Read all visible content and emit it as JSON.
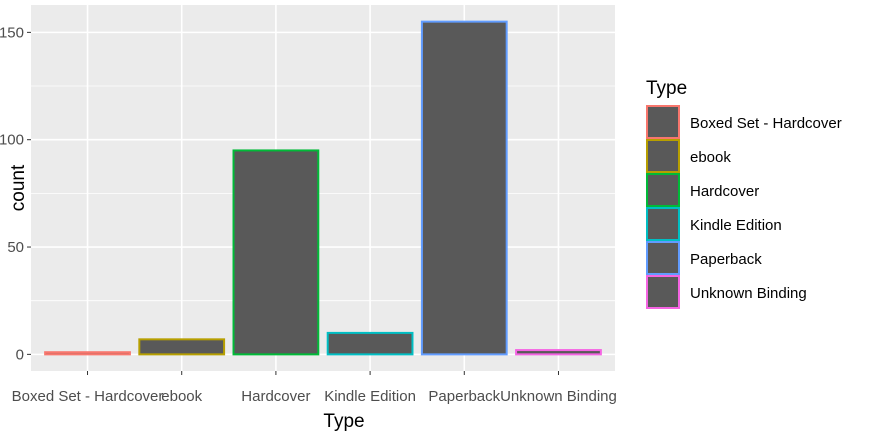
{
  "chart_data": {
    "type": "bar",
    "title": "",
    "xlabel": "Type",
    "ylabel": "count",
    "ylim": [
      -7.75,
      162.75
    ],
    "yticks": [
      0,
      50,
      100,
      150
    ],
    "grid": true,
    "categories": [
      "Boxed Set - Hardcover",
      "ebook",
      "Hardcover",
      "Kindle Edition",
      "Paperback",
      "Unknown Binding"
    ],
    "values": [
      1,
      7,
      95,
      10,
      155,
      2
    ],
    "fill_color": "#595959",
    "outline_colors": [
      "#F8766D",
      "#B79F00",
      "#00BA38",
      "#00BFC4",
      "#619CFF",
      "#F564E3"
    ],
    "legend": {
      "title": "Type",
      "position": "right",
      "entries": [
        "Boxed Set - Hardcover",
        "ebook",
        "Hardcover",
        "Kindle Edition",
        "Paperback",
        "Unknown Binding"
      ]
    }
  }
}
